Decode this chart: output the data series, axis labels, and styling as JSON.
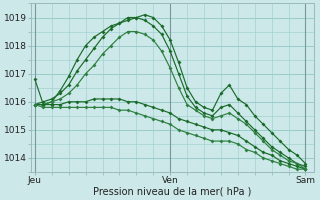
{
  "background_color": "#cce8e8",
  "grid_color": "#99cccc",
  "xlabel": "Pression niveau de la mer( hPa )",
  "xtick_labels": [
    "Jeu",
    "Ven",
    "Sam"
  ],
  "xtick_positions": [
    0,
    16,
    32
  ],
  "ylim": [
    1013.5,
    1019.5
  ],
  "yticks": [
    1014,
    1015,
    1016,
    1017,
    1018,
    1019
  ],
  "xlim": [
    -0.5,
    33
  ],
  "series": [
    [
      1016.8,
      1015.9,
      1016.0,
      1016.4,
      1016.9,
      1017.5,
      1018.0,
      1018.3,
      1018.5,
      1018.7,
      1018.8,
      1018.9,
      1019.0,
      1019.1,
      1019.0,
      1018.7,
      1018.2,
      1017.4,
      1016.5,
      1016.0,
      1015.8,
      1015.7,
      1016.3,
      1016.6,
      1016.1,
      1015.9,
      1015.5,
      1015.2,
      1014.9,
      1014.6,
      1014.3,
      1014.1,
      1013.8
    ],
    [
      1015.9,
      1016.0,
      1016.1,
      1016.3,
      1016.6,
      1017.1,
      1017.5,
      1017.9,
      1018.3,
      1018.6,
      1018.8,
      1019.0,
      1019.0,
      1018.9,
      1018.7,
      1018.4,
      1017.8,
      1017.0,
      1016.2,
      1015.8,
      1015.6,
      1015.5,
      1015.8,
      1015.9,
      1015.6,
      1015.3,
      1015.0,
      1014.7,
      1014.4,
      1014.2,
      1014.0,
      1013.8,
      1013.7
    ],
    [
      1015.9,
      1015.9,
      1016.0,
      1016.1,
      1016.3,
      1016.6,
      1017.0,
      1017.3,
      1017.7,
      1018.0,
      1018.3,
      1018.5,
      1018.5,
      1018.4,
      1018.2,
      1017.8,
      1017.2,
      1016.5,
      1015.9,
      1015.7,
      1015.5,
      1015.4,
      1015.5,
      1015.6,
      1015.4,
      1015.2,
      1014.9,
      1014.6,
      1014.3,
      1014.1,
      1013.9,
      1013.8,
      1013.6
    ],
    [
      1015.9,
      1015.9,
      1015.9,
      1015.9,
      1016.0,
      1016.0,
      1016.0,
      1016.1,
      1016.1,
      1016.1,
      1016.1,
      1016.0,
      1016.0,
      1015.9,
      1015.8,
      1015.7,
      1015.6,
      1015.4,
      1015.3,
      1015.2,
      1015.1,
      1015.0,
      1015.0,
      1014.9,
      1014.8,
      1014.6,
      1014.4,
      1014.2,
      1014.1,
      1013.9,
      1013.8,
      1013.7,
      1013.6
    ],
    [
      1015.9,
      1015.8,
      1015.8,
      1015.8,
      1015.8,
      1015.8,
      1015.8,
      1015.8,
      1015.8,
      1015.8,
      1015.7,
      1015.7,
      1015.6,
      1015.5,
      1015.4,
      1015.3,
      1015.2,
      1015.0,
      1014.9,
      1014.8,
      1014.7,
      1014.6,
      1014.6,
      1014.6,
      1014.5,
      1014.3,
      1014.2,
      1014.0,
      1013.9,
      1013.8,
      1013.7,
      1013.6,
      1013.6
    ]
  ],
  "series_colors": [
    "#1a6b2a",
    "#1a6b2a",
    "#2d8040",
    "#1a6b2a",
    "#2d8040"
  ],
  "series_markers": [
    true,
    true,
    true,
    true,
    true
  ],
  "marker_size": 2.0,
  "linewidth": 0.85
}
